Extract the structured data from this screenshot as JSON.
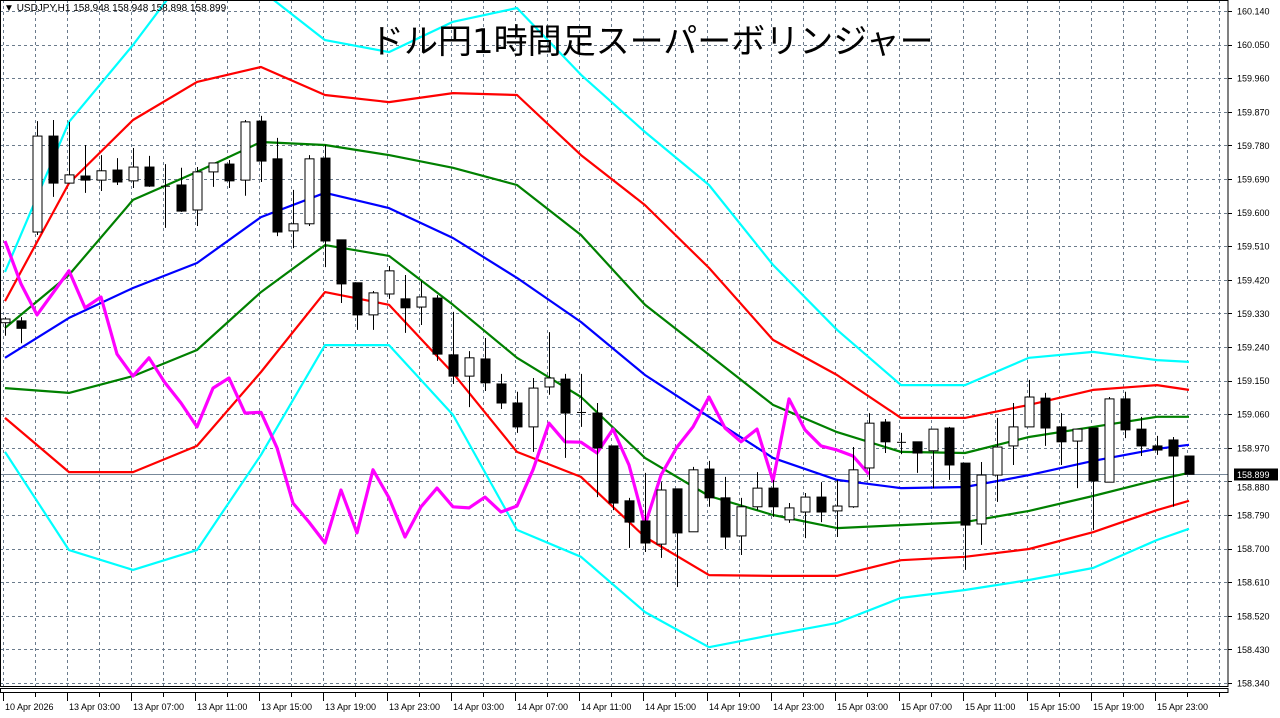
{
  "header": {
    "symbol_info": "USDJPY,H1",
    "ohlc": "158.948 158.948 158.898 158.899",
    "menu_icon": "triangle-down-icon"
  },
  "title": "ドル円1時間足スーパーボリンジャー",
  "colors": {
    "background": "#ffffff",
    "grid": "#6b7b8c",
    "bull_body": "#ffffff",
    "bear_body": "#000000",
    "middle": "#0000ff",
    "sigma1": "#008000",
    "sigma2": "#ff0000",
    "sigma3": "#00ffff",
    "lagging_span": "#ff00ff",
    "bid_line": "#778899"
  },
  "chart_data": {
    "type": "candlestick",
    "symbol": "USDJPY",
    "timeframe": "H1",
    "ylim": [
      158.34,
      160.14
    ],
    "grid": true,
    "y_ticks": [
      "160.140",
      "160.050",
      "159.960",
      "159.870",
      "159.780",
      "159.690",
      "159.600",
      "159.510",
      "159.420",
      "159.330",
      "159.240",
      "159.150",
      "159.060",
      "158.970",
      "158.880",
      "158.790",
      "158.700",
      "158.610",
      "158.520",
      "158.430",
      "158.340"
    ],
    "x_ticks": [
      "10 Apr 2026",
      "13 Apr 03:00",
      "13 Apr 07:00",
      "13 Apr 11:00",
      "13 Apr 15:00",
      "13 Apr 19:00",
      "13 Apr 23:00",
      "14 Apr 03:00",
      "14 Apr 07:00",
      "14 Apr 11:00",
      "14 Apr 15:00",
      "14 Apr 19:00",
      "14 Apr 23:00",
      "15 Apr 03:00",
      "15 Apr 07:00",
      "15 Apr 11:00",
      "15 Apr 15:00",
      "15 Apr 19:00",
      "15 Apr 23:00"
    ],
    "current_price": "158.899",
    "candles_columns": [
      "time",
      "open",
      "high",
      "low",
      "close"
    ],
    "candles": [
      [
        "10 Apr 23:00",
        159.305,
        159.32,
        159.27,
        159.315
      ],
      [
        "13 Apr 00:00",
        159.31,
        159.32,
        159.25,
        159.29
      ],
      [
        "13 Apr 01:00",
        159.548,
        159.845,
        159.54,
        159.805
      ],
      [
        "13 Apr 02:00",
        159.805,
        159.848,
        159.642,
        159.679
      ],
      [
        "13 Apr 03:00",
        159.679,
        159.843,
        159.679,
        159.701
      ],
      [
        "13 Apr 04:00",
        159.698,
        159.781,
        159.653,
        159.687
      ],
      [
        "13 Apr 05:00",
        159.687,
        159.754,
        159.658,
        159.712
      ],
      [
        "13 Apr 06:00",
        159.714,
        159.746,
        159.674,
        159.682
      ],
      [
        "13 Apr 07:00",
        159.685,
        159.773,
        159.666,
        159.722
      ],
      [
        "13 Apr 08:00",
        159.722,
        159.752,
        159.669,
        159.671
      ],
      [
        "13 Apr 09:00",
        159.671,
        159.73,
        159.559,
        159.672
      ],
      [
        "13 Apr 10:00",
        159.674,
        159.72,
        159.602,
        159.604
      ],
      [
        "13 Apr 11:00",
        159.607,
        159.722,
        159.564,
        159.709
      ],
      [
        "13 Apr 12:00",
        159.709,
        159.733,
        159.669,
        159.733
      ],
      [
        "13 Apr 13:00",
        159.73,
        159.741,
        159.666,
        159.685
      ],
      [
        "13 Apr 14:00",
        159.687,
        159.848,
        159.645,
        159.843
      ],
      [
        "13 Apr 15:00",
        159.845,
        159.859,
        159.682,
        159.738
      ],
      [
        "13 Apr 16:00",
        159.744,
        159.8,
        159.537,
        159.548
      ],
      [
        "13 Apr 17:00",
        159.551,
        159.661,
        159.505,
        159.57
      ],
      [
        "13 Apr 18:00",
        159.57,
        159.754,
        159.564,
        159.744
      ],
      [
        "13 Apr 19:00",
        159.746,
        159.781,
        159.454,
        159.524
      ],
      [
        "13 Apr 20:00",
        159.527,
        159.527,
        159.358,
        159.409
      ],
      [
        "13 Apr 21:00",
        159.412,
        159.412,
        159.286,
        159.326
      ],
      [
        "13 Apr 22:00",
        159.326,
        159.39,
        159.286,
        159.385
      ],
      [
        "13 Apr 23:00",
        159.382,
        159.457,
        159.369,
        159.444
      ],
      [
        "14 Apr 00:00",
        159.369,
        159.433,
        159.278,
        159.345
      ],
      [
        "14 Apr 01:00",
        159.347,
        159.417,
        159.299,
        159.374
      ],
      [
        "14 Apr 02:00",
        159.371,
        159.379,
        159.203,
        159.221
      ],
      [
        "14 Apr 03:00",
        159.219,
        159.334,
        159.141,
        159.162
      ],
      [
        "14 Apr 04:00",
        159.162,
        159.229,
        159.079,
        159.211
      ],
      [
        "14 Apr 05:00",
        159.208,
        159.264,
        159.122,
        159.144
      ],
      [
        "14 Apr 06:00",
        159.141,
        159.168,
        159.074,
        159.09
      ],
      [
        "14 Apr 07:00",
        159.09,
        159.12,
        159.01,
        159.026
      ],
      [
        "14 Apr 08:00",
        159.026,
        159.157,
        158.959,
        159.13
      ],
      [
        "14 Apr 09:00",
        159.133,
        159.28,
        159.112,
        159.157
      ],
      [
        "14 Apr 10:00",
        159.154,
        159.168,
        158.943,
        159.063
      ],
      [
        "14 Apr 11:00",
        159.066,
        159.168,
        159.026,
        159.065
      ],
      [
        "14 Apr 12:00",
        159.063,
        159.09,
        158.838,
        158.97
      ],
      [
        "14 Apr 13:00",
        158.975,
        158.975,
        158.803,
        158.822
      ],
      [
        "14 Apr 14:00",
        158.828,
        158.836,
        158.702,
        158.771
      ],
      [
        "14 Apr 15:00",
        158.774,
        158.903,
        158.691,
        158.715
      ],
      [
        "14 Apr 16:00",
        158.712,
        158.878,
        158.675,
        158.857
      ],
      [
        "14 Apr 17:00",
        158.86,
        158.86,
        158.597,
        158.742
      ],
      [
        "14 Apr 18:00",
        158.745,
        158.919,
        158.745,
        158.911
      ],
      [
        "14 Apr 19:00",
        158.913,
        158.935,
        158.812,
        158.836
      ],
      [
        "14 Apr 20:00",
        158.836,
        158.892,
        158.699,
        158.731
      ],
      [
        "14 Apr 21:00",
        158.734,
        158.836,
        158.683,
        158.812
      ],
      [
        "14 Apr 22:00",
        158.812,
        158.905,
        158.803,
        158.862
      ],
      [
        "14 Apr 23:00",
        158.862,
        158.884,
        158.785,
        158.812
      ],
      [
        "15 Apr 00:00",
        158.777,
        158.822,
        158.769,
        158.809
      ],
      [
        "15 Apr 01:00",
        158.798,
        158.849,
        158.728,
        158.838
      ],
      [
        "15 Apr 02:00",
        158.838,
        158.878,
        158.771,
        158.798
      ],
      [
        "15 Apr 03:00",
        158.801,
        158.884,
        158.731,
        158.814
      ],
      [
        "15 Apr 04:00",
        158.812,
        158.972,
        158.809,
        158.911
      ],
      [
        "15 Apr 05:00",
        158.916,
        159.063,
        158.884,
        159.036
      ],
      [
        "15 Apr 06:00",
        159.039,
        159.047,
        158.956,
        158.986
      ],
      [
        "15 Apr 07:00",
        158.986,
        159.01,
        158.953,
        158.985
      ],
      [
        "15 Apr 08:00",
        158.986,
        158.986,
        158.903,
        158.956
      ],
      [
        "15 Apr 09:00",
        158.962,
        159.02,
        158.862,
        159.02
      ],
      [
        "15 Apr 10:00",
        159.023,
        159.026,
        158.884,
        158.924
      ],
      [
        "15 Apr 11:00",
        158.929,
        158.929,
        158.643,
        158.763
      ],
      [
        "15 Apr 12:00",
        158.766,
        158.932,
        158.71,
        158.897
      ],
      [
        "15 Apr 13:00",
        158.897,
        159.05,
        158.825,
        158.972
      ],
      [
        "15 Apr 14:00",
        158.975,
        159.09,
        158.924,
        159.026
      ],
      [
        "15 Apr 15:00",
        159.026,
        159.152,
        159.026,
        159.106
      ],
      [
        "15 Apr 16:00",
        159.103,
        159.117,
        158.975,
        159.023
      ],
      [
        "15 Apr 17:00",
        159.026,
        159.063,
        158.924,
        158.986
      ],
      [
        "15 Apr 18:00",
        158.988,
        159.02,
        158.862,
        159.02
      ],
      [
        "15 Apr 19:00",
        159.023,
        159.023,
        158.75,
        158.881
      ],
      [
        "15 Apr 20:00",
        158.878,
        159.106,
        158.878,
        159.101
      ],
      [
        "15 Apr 21:00",
        159.101,
        159.12,
        158.996,
        159.018
      ],
      [
        "15 Apr 22:00",
        159.02,
        159.053,
        158.948,
        158.975
      ],
      [
        "15 Apr 23:00",
        158.975,
        159.002,
        158.951,
        158.964
      ],
      [
        "16 Apr 00:00",
        158.991,
        158.999,
        158.812,
        158.948
      ],
      [
        "16 Apr 01:00",
        158.948,
        158.948,
        158.898,
        158.899
      ]
    ],
    "band_times": [
      "10 Apr 23:00",
      "13 Apr 03:00",
      "13 Apr 07:00",
      "13 Apr 11:00",
      "13 Apr 15:00",
      "13 Apr 19:00",
      "13 Apr 23:00",
      "14 Apr 03:00",
      "14 Apr 07:00",
      "14 Apr 11:00",
      "14 Apr 15:00",
      "14 Apr 19:00",
      "14 Apr 23:00",
      "15 Apr 03:00",
      "15 Apr 07:00",
      "15 Apr 11:00",
      "15 Apr 15:00",
      "15 Apr 19:00",
      "15 Apr 23:00",
      "16 Apr 01:00"
    ],
    "bands": [
      {
        "key": "sigma3",
        "color": "#00ffff",
        "values": [
          159.441,
          159.843,
          160.049,
          160.277,
          160.196,
          160.062,
          160.03,
          160.111,
          160.148,
          159.969,
          159.816,
          159.674,
          159.46,
          159.286,
          159.138,
          159.138,
          159.211,
          159.227,
          159.205,
          159.2
        ]
      },
      {
        "key": "sigma2",
        "color": "#ff0000",
        "values": [
          159.363,
          159.679,
          159.848,
          159.95,
          159.99,
          159.915,
          159.896,
          159.92,
          159.915,
          159.754,
          159.62,
          159.452,
          159.259,
          159.165,
          159.05,
          159.05,
          159.085,
          159.125,
          159.138,
          159.125
        ]
      },
      {
        "key": "sigma1",
        "color": "#008000",
        "values": [
          159.291,
          159.433,
          159.634,
          159.709,
          159.789,
          159.781,
          159.754,
          159.72,
          159.674,
          159.54,
          159.353,
          159.219,
          159.085,
          159.012,
          158.959,
          158.956,
          158.999,
          159.026,
          159.053,
          159.053
        ]
      },
      {
        "key": "middle",
        "color": "#0000ff",
        "values": [
          159.211,
          159.318,
          159.398,
          159.465,
          159.588,
          159.653,
          159.612,
          159.532,
          159.425,
          159.307,
          159.165,
          159.053,
          158.943,
          158.884,
          158.862,
          158.865,
          158.897,
          158.935,
          158.967,
          158.978
        ]
      },
      {
        "key": "minus1",
        "color": "#008000",
        "values": [
          159.13,
          159.117,
          159.162,
          159.232,
          159.387,
          159.513,
          159.484,
          159.353,
          159.211,
          159.106,
          158.943,
          158.841,
          158.79,
          158.755,
          158.763,
          158.771,
          158.801,
          158.841,
          158.884,
          158.903
        ]
      },
      {
        "key": "minus2",
        "color": "#ff0000",
        "values": [
          159.05,
          158.905,
          158.905,
          158.975,
          159.173,
          159.387,
          159.353,
          159.17,
          158.959,
          158.892,
          158.731,
          158.629,
          158.627,
          158.627,
          158.669,
          158.678,
          158.699,
          158.744,
          158.803,
          158.828
        ]
      },
      {
        "key": "minus3",
        "color": "#00ffff",
        "values": [
          158.959,
          158.696,
          158.643,
          158.696,
          158.951,
          159.245,
          159.245,
          159.058,
          158.75,
          158.678,
          158.53,
          158.436,
          158.469,
          158.501,
          158.568,
          158.589,
          158.616,
          158.648,
          158.723,
          158.753
        ]
      }
    ]
  }
}
